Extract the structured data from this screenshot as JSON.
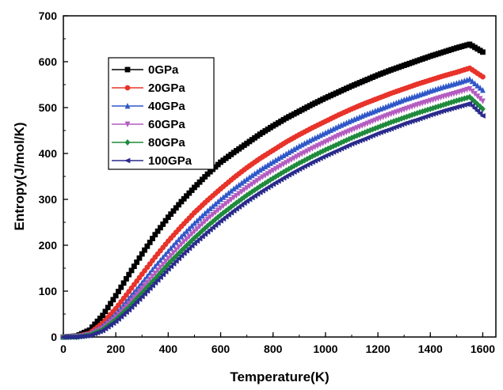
{
  "chart_data": {
    "type": "line",
    "title": "",
    "xlabel": "Temperature(K)",
    "ylabel": "Entropy(J/mol/K)",
    "xlim": [
      0,
      1650
    ],
    "ylim": [
      0,
      700
    ],
    "x_ticks": [
      0,
      200,
      400,
      600,
      800,
      1000,
      1200,
      1400,
      1600
    ],
    "y_ticks": [
      0,
      100,
      200,
      300,
      400,
      500,
      600,
      700
    ],
    "grid": false,
    "legend_position": "top-left",
    "series": [
      {
        "name": "0GPa",
        "color": "#000000",
        "marker": "square",
        "x": [
          0,
          50,
          100,
          150,
          200,
          250,
          300,
          350,
          400,
          450,
          500,
          550,
          600,
          650,
          700,
          750,
          800,
          850,
          900,
          950,
          1000,
          1050,
          1100,
          1150,
          1200,
          1250,
          1300,
          1350,
          1400,
          1450,
          1500,
          1550,
          1600
        ],
        "y": [
          0,
          2,
          15,
          47,
          90,
          136,
          181,
          223,
          261,
          295,
          326,
          355,
          381,
          402,
          422,
          442,
          460,
          477,
          492,
          507,
          521,
          534,
          547,
          559,
          571,
          582,
          592,
          602,
          612,
          621,
          630,
          638,
          621
        ]
      },
      {
        "name": "20GPa",
        "color": "#e8332a",
        "marker": "circle",
        "x": [
          0,
          50,
          100,
          150,
          200,
          250,
          300,
          350,
          400,
          450,
          500,
          550,
          600,
          650,
          700,
          750,
          800,
          850,
          900,
          950,
          1000,
          1050,
          1100,
          1150,
          1200,
          1250,
          1300,
          1350,
          1400,
          1450,
          1500,
          1550,
          1600
        ],
        "y": [
          0,
          1,
          8,
          30,
          62,
          99,
          137,
          174,
          209,
          241,
          271,
          298,
          323,
          347,
          369,
          389,
          407,
          425,
          441,
          456,
          470,
          484,
          497,
          509,
          520,
          531,
          541,
          551,
          560,
          569,
          577,
          586,
          567
        ]
      },
      {
        "name": "40GPa",
        "color": "#2f57c8",
        "marker": "triangle-up",
        "x": [
          0,
          50,
          100,
          150,
          200,
          250,
          300,
          350,
          400,
          450,
          500,
          550,
          600,
          650,
          700,
          750,
          800,
          850,
          900,
          950,
          1000,
          1050,
          1100,
          1150,
          1200,
          1250,
          1300,
          1350,
          1400,
          1450,
          1500,
          1550,
          1600
        ],
        "y": [
          0,
          1,
          6,
          23,
          50,
          84,
          118,
          154,
          187,
          219,
          248,
          275,
          300,
          323,
          344,
          364,
          382,
          399,
          416,
          431,
          445,
          459,
          472,
          484,
          495,
          506,
          517,
          526,
          536,
          545,
          553,
          562,
          538
        ]
      },
      {
        "name": "60GPa",
        "color": "#b45cc0",
        "marker": "triangle-down",
        "x": [
          0,
          50,
          100,
          150,
          200,
          250,
          300,
          350,
          400,
          450,
          500,
          550,
          600,
          650,
          700,
          750,
          800,
          850,
          900,
          950,
          1000,
          1050,
          1100,
          1150,
          1200,
          1250,
          1300,
          1350,
          1400,
          1450,
          1500,
          1550,
          1600
        ],
        "y": [
          0,
          1,
          5,
          19,
          43,
          73,
          106,
          139,
          171,
          202,
          230,
          257,
          281,
          304,
          325,
          345,
          363,
          380,
          396,
          411,
          425,
          439,
          451,
          463,
          475,
          486,
          496,
          506,
          515,
          524,
          532,
          541,
          514
        ]
      },
      {
        "name": "80GPa",
        "color": "#1f8a3c",
        "marker": "diamond",
        "x": [
          0,
          50,
          100,
          150,
          200,
          250,
          300,
          350,
          400,
          450,
          500,
          550,
          600,
          650,
          700,
          750,
          800,
          850,
          900,
          950,
          1000,
          1050,
          1100,
          1150,
          1200,
          1250,
          1300,
          1350,
          1400,
          1450,
          1500,
          1550,
          1600
        ],
        "y": [
          0,
          0,
          4,
          16,
          38,
          65,
          96,
          127,
          159,
          188,
          216,
          242,
          266,
          288,
          309,
          328,
          346,
          363,
          379,
          394,
          408,
          421,
          434,
          446,
          457,
          468,
          478,
          488,
          497,
          506,
          515,
          523,
          497
        ]
      },
      {
        "name": "100GPa",
        "color": "#2a2a8c",
        "marker": "triangle-left",
        "x": [
          0,
          50,
          100,
          150,
          200,
          250,
          300,
          350,
          400,
          450,
          500,
          550,
          600,
          650,
          700,
          750,
          800,
          850,
          900,
          950,
          1000,
          1050,
          1100,
          1150,
          1200,
          1250,
          1300,
          1350,
          1400,
          1450,
          1500,
          1550,
          1600
        ],
        "y": [
          0,
          0,
          3,
          14,
          34,
          59,
          88,
          118,
          148,
          177,
          204,
          229,
          253,
          275,
          296,
          315,
          333,
          350,
          366,
          381,
          395,
          408,
          421,
          432,
          444,
          454,
          465,
          474,
          484,
          493,
          501,
          509,
          482
        ]
      }
    ]
  }
}
